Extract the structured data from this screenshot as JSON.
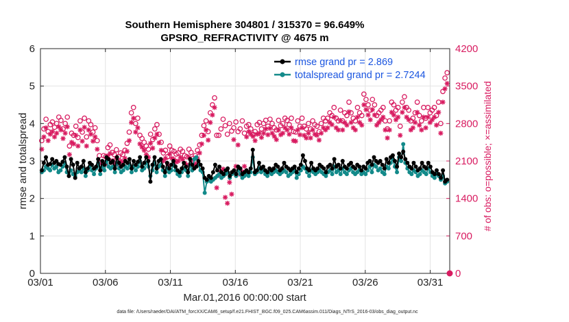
{
  "chart_data": {
    "type": "line",
    "title_line1": "Southern Hemisphere 304801 / 315370 = 96.649%",
    "title_line2": "GPSRO_REFRACTIVITY @ 4675 m",
    "xlabel": "Mar.01,2016 00:00:00 start",
    "ylabel": "rmse and totalspread",
    "y2label": "# of obs: o=possible; ×=assimilated",
    "xlim": [
      0,
      31.5
    ],
    "ylim": [
      0,
      6
    ],
    "y2lim": [
      0,
      4200
    ],
    "xticks": [
      0,
      5,
      10,
      15,
      20,
      25,
      30
    ],
    "xtick_labels": [
      "03/01",
      "03/06",
      "03/11",
      "03/16",
      "03/21",
      "03/26",
      "03/31"
    ],
    "yticks": [
      0,
      1,
      2,
      3,
      4,
      5,
      6
    ],
    "ytick_labels": [
      "0",
      "1",
      "2",
      "3",
      "4",
      "5",
      "6"
    ],
    "y2ticks": [
      0,
      700,
      1400,
      2100,
      2800,
      3500,
      4200
    ],
    "y2tick_labels": [
      "0",
      "700",
      "1400",
      "2100",
      "2800",
      "3500",
      "4200"
    ],
    "grid": true,
    "legend_position": "top-right",
    "colors": {
      "rmse": "#000000",
      "spread": "#138a8a",
      "obs": "#d81b60",
      "legend_text": "#1a55e0"
    },
    "series": [
      {
        "name": "rmse grand pr = 2.869",
        "axis": "left",
        "marker": "filled-circle",
        "values": [
          2.75,
          2.95,
          3.1,
          2.9,
          2.92,
          3.05,
          2.95,
          3.0,
          2.92,
          2.9,
          2.98,
          3.1,
          2.85,
          2.6,
          3.05,
          2.9,
          2.55,
          2.95,
          2.8,
          2.85,
          3.0,
          2.7,
          2.8,
          2.95,
          2.9,
          2.8,
          2.85,
          3.05,
          2.75,
          3.0,
          2.9,
          3.1,
          3.05,
          2.95,
          3.0,
          2.8,
          3.1,
          2.95,
          2.85,
          2.9,
          3.0,
          2.95,
          3.05,
          2.8,
          3.0,
          2.9,
          2.98,
          3.1,
          2.85,
          2.95,
          3.1,
          3.0,
          2.45,
          2.9,
          3.1,
          2.8,
          3.0,
          3.05,
          2.85,
          2.7,
          2.95,
          2.8,
          2.9,
          3.0,
          2.85,
          2.75,
          2.7,
          2.8,
          2.95,
          2.85,
          2.7,
          3.05,
          2.9,
          2.8,
          2.85,
          3.0,
          2.9,
          2.8,
          2.55,
          2.5,
          2.6,
          2.55,
          2.7,
          2.9,
          2.75,
          2.85,
          2.7,
          2.65,
          2.75,
          2.8,
          2.6,
          2.7,
          2.75,
          2.65,
          2.85,
          2.8,
          2.65,
          2.7,
          2.75,
          2.7,
          2.8,
          3.3,
          2.7,
          2.75,
          2.95,
          2.8,
          2.85,
          2.75,
          2.7,
          2.8,
          2.75,
          2.8,
          2.9,
          2.85,
          2.75,
          2.8,
          2.95,
          2.85,
          2.8,
          2.75,
          2.8,
          2.85,
          2.7,
          2.8,
          2.9,
          3.15,
          3.0,
          2.8,
          2.75,
          2.95,
          2.8,
          2.75,
          2.8,
          2.9,
          2.85,
          2.8,
          2.7,
          2.85,
          2.9,
          2.8,
          3.05,
          2.85,
          2.9,
          2.8,
          3.0,
          2.85,
          2.8,
          2.9,
          2.95,
          2.85,
          2.8,
          2.9,
          2.85,
          2.75,
          2.85,
          2.8,
          2.95,
          3.0,
          2.9,
          3.1,
          3.0,
          2.95,
          3.0,
          2.9,
          2.8,
          3.05,
          2.95,
          3.1,
          3.15,
          3.0,
          2.85,
          3.2,
          3.1,
          3.25,
          3.05,
          2.95,
          2.85,
          2.8,
          2.95,
          2.85,
          2.75,
          2.8,
          2.95,
          2.85,
          2.8,
          2.95,
          2.85,
          2.7,
          2.65,
          2.75,
          2.65,
          2.55,
          2.75,
          2.45,
          2.5
        ]
      },
      {
        "name": "totalspread grand pr = 2.7244",
        "axis": "left",
        "marker": "filled-circle",
        "values": [
          2.7,
          2.75,
          2.85,
          2.8,
          2.75,
          2.9,
          2.8,
          2.85,
          2.7,
          2.75,
          2.85,
          2.95,
          2.7,
          2.6,
          2.75,
          2.65,
          2.6,
          2.7,
          2.75,
          2.7,
          2.8,
          2.6,
          2.75,
          2.85,
          2.75,
          2.65,
          2.8,
          2.95,
          2.65,
          2.85,
          2.75,
          3.0,
          2.85,
          2.8,
          2.85,
          2.7,
          2.95,
          2.8,
          2.7,
          2.75,
          2.85,
          2.8,
          2.9,
          2.7,
          2.85,
          2.75,
          2.85,
          3.0,
          2.75,
          2.8,
          2.95,
          2.85,
          2.6,
          2.75,
          2.95,
          2.7,
          2.85,
          2.9,
          2.75,
          2.6,
          2.8,
          2.7,
          2.75,
          2.9,
          2.75,
          2.65,
          2.6,
          2.7,
          2.8,
          2.75,
          2.6,
          2.9,
          2.75,
          3.05,
          3.1,
          2.9,
          2.75,
          2.7,
          2.15,
          2.45,
          2.5,
          2.45,
          2.5,
          2.55,
          2.6,
          2.65,
          2.55,
          2.6,
          2.65,
          2.7,
          2.55,
          2.65,
          2.7,
          2.6,
          2.75,
          2.65,
          2.55,
          2.6,
          2.65,
          2.6,
          2.7,
          3.1,
          2.65,
          2.7,
          2.8,
          2.7,
          2.75,
          2.65,
          2.6,
          2.7,
          2.65,
          2.7,
          2.75,
          2.7,
          2.65,
          2.7,
          2.75,
          2.7,
          2.6,
          2.65,
          2.7,
          2.75,
          2.55,
          2.65,
          2.75,
          2.85,
          2.8,
          2.7,
          2.6,
          2.75,
          2.7,
          2.65,
          2.7,
          2.75,
          2.7,
          2.65,
          2.6,
          2.7,
          2.75,
          2.65,
          2.85,
          2.7,
          2.75,
          2.65,
          2.8,
          2.7,
          2.65,
          2.75,
          2.8,
          2.7,
          2.65,
          2.7,
          2.75,
          2.65,
          2.7,
          2.65,
          2.75,
          2.85,
          2.7,
          2.9,
          2.85,
          2.75,
          2.8,
          2.7,
          2.65,
          2.85,
          2.8,
          2.95,
          3.05,
          2.85,
          2.7,
          3.1,
          3.0,
          3.45,
          2.95,
          2.8,
          2.7,
          2.65,
          2.75,
          2.7,
          2.6,
          2.65,
          2.75,
          2.7,
          2.65,
          2.8,
          2.7,
          2.6,
          2.55,
          2.65,
          2.6,
          2.5,
          2.6,
          2.4,
          2.45
        ]
      },
      {
        "name": "possible",
        "axis": "right",
        "marker": "open-circle",
        "values": [
          2480,
          2700,
          2880,
          2650,
          2780,
          2830,
          2730,
          2800,
          2920,
          2860,
          2700,
          2800,
          2920,
          2380,
          2620,
          2580,
          2750,
          2540,
          2850,
          2640,
          2900,
          2550,
          2850,
          2780,
          2640,
          2720,
          2480,
          2200,
          2080,
          2200,
          2180,
          2350,
          2400,
          2260,
          2220,
          2310,
          2180,
          2250,
          2220,
          2300,
          2430,
          2640,
          3000,
          3100,
          2800,
          2900,
          2580,
          2520,
          2450,
          2380,
          2320,
          2600,
          2500,
          2700,
          2780,
          2600,
          2450,
          2250,
          2300,
          2180,
          2380,
          2300,
          2280,
          2230,
          2250,
          2320,
          2280,
          2200,
          2180,
          2320,
          2260,
          2150,
          2200,
          2300,
          2400,
          2580,
          2760,
          2850,
          2650,
          3000,
          3150,
          3280,
          2580,
          2580,
          2700,
          2880,
          2760,
          2600,
          2800,
          2660,
          2720,
          2830,
          2650,
          2700,
          2850,
          2620,
          2750,
          2780,
          2700,
          2600,
          2650,
          2780,
          2820,
          2700,
          2800,
          2860,
          2750,
          2880,
          2800,
          2720,
          2680,
          2860,
          2760,
          2800,
          2900,
          2860,
          2780,
          2900,
          2650,
          2640,
          2850,
          2750,
          2900,
          2750,
          2700,
          2800,
          2700,
          2850,
          2780,
          2750,
          2650,
          2800,
          2900,
          2850,
          2900,
          3000,
          2950,
          3100,
          2900,
          2850,
          3050,
          2850,
          3000,
          2950,
          3200,
          3000,
          2900,
          2850,
          3100,
          3000,
          2950,
          3350,
          3250,
          3150,
          3050,
          3250,
          3150,
          2950,
          3000,
          3050,
          3100,
          2850,
          2700,
          2850,
          3200,
          3150,
          3050,
          3100,
          2750,
          3200,
          3300,
          3100,
          3050,
          2850,
          2900,
          3000,
          3200,
          2950,
          2850,
          3100,
          2900,
          3100,
          3000,
          3050,
          3100,
          2950,
          3200,
          2800,
          3400,
          3650,
          3750
        ]
      },
      {
        "name": "assimilated",
        "axis": "right",
        "marker": "asterisk",
        "values": [
          2320,
          2550,
          2720,
          2480,
          2600,
          2650,
          2550,
          2620,
          2740,
          2680,
          2520,
          2620,
          2740,
          2220,
          2450,
          2420,
          2580,
          2380,
          2680,
          2470,
          2730,
          2380,
          2680,
          2600,
          2470,
          2550,
          2320,
          2060,
          1940,
          2060,
          2040,
          2200,
          2240,
          2110,
          2070,
          2150,
          2030,
          2100,
          2070,
          2150,
          2280,
          2480,
          2820,
          2900,
          2640,
          2720,
          2420,
          2360,
          2300,
          2220,
          2170,
          2430,
          2340,
          2530,
          2600,
          2440,
          2300,
          2100,
          2150,
          2040,
          2230,
          2150,
          2130,
          2080,
          2100,
          2170,
          2130,
          2060,
          2030,
          2170,
          2110,
          2000,
          2050,
          2150,
          2250,
          2420,
          2580,
          2680,
          2490,
          2820,
          2960,
          3100,
          1600,
          1830,
          1900,
          1950,
          1420,
          1310,
          1700,
          1480,
          2500,
          2000,
          2400,
          1850,
          1900,
          2000,
          2550,
          2650,
          2600,
          2560,
          2480,
          2600,
          2620,
          2540,
          2620,
          2700,
          2590,
          2710,
          2620,
          2560,
          2500,
          2680,
          2590,
          2620,
          2720,
          2680,
          2600,
          2720,
          2480,
          2470,
          2680,
          2590,
          2720,
          2580,
          2530,
          2620,
          2530,
          2680,
          2600,
          2580,
          2490,
          2620,
          2720,
          2680,
          2720,
          2820,
          2780,
          2920,
          2720,
          2680,
          2860,
          2680,
          2820,
          2770,
          3020,
          2820,
          2720,
          2680,
          2920,
          2820,
          2770,
          3150,
          3060,
          2960,
          2870,
          3060,
          2960,
          2770,
          2820,
          2870,
          2920,
          2680,
          2530,
          2680,
          3010,
          2960,
          2870,
          2920,
          2580,
          3010,
          3100,
          2920,
          2870,
          2680,
          2720,
          2820,
          3010,
          2770,
          2680,
          2920,
          2720,
          2920,
          2820,
          2870,
          2920,
          2770,
          3010,
          2620,
          3200,
          3450,
          3550
        ]
      }
    ],
    "legend": [
      "rmse grand pr = 2.869",
      "totalspread grand pr = 2.7244"
    ],
    "annotation_right_zero_marker": "0"
  },
  "footer": {
    "data_file": "data file: /Users/raeder/DAI/ATM_forcXX/CAM6_setup/f.e21.FHIST_BGC.f09_025.CAM6assim.011/Diags_NTrS_2016-03/obs_diag_output.nc"
  }
}
